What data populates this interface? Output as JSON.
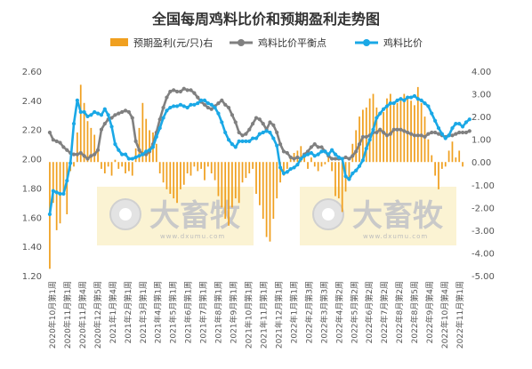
{
  "chart_data": {
    "type": "bar+line",
    "title": "全国每周鸡料比价和预期盈利走势图",
    "legend_placement": "top",
    "grid": false,
    "colors": {
      "profit": "#f0a020",
      "breakeven": "#808080",
      "ratio": "#1aa8e6",
      "watermark_box": "#fbf3d3"
    },
    "y_left": {
      "min": 1.2,
      "max": 2.6,
      "step": 0.2,
      "ticks": [
        "1.20",
        "1.40",
        "1.60",
        "1.80",
        "2.00",
        "2.20",
        "2.40",
        "2.60"
      ]
    },
    "y_right": {
      "min": -5,
      "max": 4,
      "step": 1,
      "ticks": [
        "-5.00",
        "-4.00",
        "-3.00",
        "-2.00",
        "-1.00",
        "0.00",
        "1.00",
        "2.00",
        "3.00",
        "4.00"
      ]
    },
    "x_tick_labels": [
      "2020年10月第1周",
      "2020年11月第1周",
      "2020年11月第4周",
      "2020年12月第5周",
      "2021年1月第4周",
      "2021年2月第1周",
      "2021年3月第1周",
      "2021年4月第1周",
      "2021年5月第1周",
      "2021年6月第1周",
      "2021年7月第1周",
      "2021年8月第1周",
      "2021年9月第1周",
      "2021年10月第1周",
      "2021年11月第1周",
      "2021年12月第1周",
      "2022年1月第1周",
      "2022年2月第3周",
      "2022年3月第3周",
      "2022年4月第2周",
      "2022年5月第2周",
      "2022年6月第2周",
      "2022年7月第2周",
      "2022年8月第2周",
      "2022年8月第5周",
      "2022年9月第4周",
      "2022年10月第4周",
      "2022年11月第1周"
    ],
    "watermarks": [
      {
        "label": "大畜牧",
        "sub": "www.dxumu.com"
      },
      {
        "label": "大畜牧",
        "sub": "www.dxumu.com"
      }
    ],
    "series": [
      {
        "name": "预期盈利(元/只)右",
        "axis": "right",
        "type": "bar",
        "values": [
          -4.7,
          -1.8,
          -3.0,
          -2.7,
          -1.4,
          -2.3,
          -0.4,
          -0.2,
          1.3,
          3.4,
          2.6,
          1.8,
          1.5,
          1.2,
          0.5,
          -0.3,
          -0.5,
          -0.2,
          -0.6,
          0.1,
          -0.3,
          -0.2,
          -0.5,
          -0.4,
          -0.6,
          0.6,
          1.5,
          2.6,
          1.9,
          1.4,
          1.3,
          0.8,
          -0.5,
          -0.9,
          -1.2,
          -1.4,
          -1.6,
          -1.8,
          -1.2,
          -1.0,
          -0.5,
          -0.6,
          -0.2,
          -0.4,
          -0.3,
          -0.8,
          -0.2,
          -0.5,
          -0.8,
          -1.5,
          -2.0,
          -2.5,
          -2.8,
          -2.0,
          -1.6,
          -1.8,
          -0.9,
          -0.7,
          -0.5,
          -0.3,
          -1.4,
          -1.9,
          -2.5,
          -3.3,
          -3.5,
          -2.5,
          -1.6,
          -0.9,
          -0.6,
          -0.3,
          0.2,
          0.4,
          0.5,
          0.7,
          0.3,
          -0.3,
          0.2,
          -0.2,
          -0.4,
          -0.2,
          -0.1,
          0.3,
          -0.4,
          -1.5,
          -1.6,
          -2.2,
          -1.3,
          -0.8,
          0.8,
          1.4,
          2.0,
          2.3,
          2.4,
          2.8,
          3.0,
          2.4,
          1.5,
          2.2,
          2.8,
          3.0,
          2.5,
          2.6,
          2.8,
          3.0,
          2.9,
          2.7,
          2.5,
          3.3,
          2.6,
          2.0,
          1.0,
          0.3,
          -0.6,
          -1.2,
          -0.3,
          -0.2,
          0.5,
          0.9,
          0.2,
          0.5,
          -0.2
        ]
      },
      {
        "name": "鸡料比价平衡点",
        "axis": "left",
        "type": "line",
        "values": [
          2.18,
          2.13,
          2.12,
          2.11,
          2.08,
          2.06,
          2.04,
          2.03,
          2.03,
          2.04,
          2.02,
          2.0,
          2.02,
          2.03,
          2.06,
          2.2,
          2.24,
          2.27,
          2.28,
          2.3,
          2.31,
          2.32,
          2.33,
          2.32,
          2.28,
          2.12,
          2.06,
          2.03,
          2.03,
          2.05,
          2.1,
          2.18,
          2.27,
          2.35,
          2.42,
          2.46,
          2.47,
          2.46,
          2.46,
          2.48,
          2.47,
          2.47,
          2.45,
          2.42,
          2.39,
          2.37,
          2.35,
          2.34,
          2.36,
          2.38,
          2.4,
          2.37,
          2.35,
          2.3,
          2.25,
          2.18,
          2.16,
          2.17,
          2.2,
          2.24,
          2.28,
          2.27,
          2.24,
          2.2,
          2.25,
          2.23,
          2.18,
          2.1,
          2.05,
          2.04,
          2.01,
          2.0,
          2.01,
          2.0,
          2.03,
          2.05,
          2.08,
          2.1,
          2.08,
          2.08,
          2.05,
          2.02,
          2.0,
          2.0,
          2.0,
          2.0,
          2.01,
          2.0,
          2.02,
          2.05,
          2.1,
          2.15,
          2.15,
          2.16,
          2.18,
          2.18,
          2.2,
          2.18,
          2.16,
          2.17,
          2.2,
          2.2,
          2.2,
          2.19,
          2.18,
          2.17,
          2.16,
          2.16,
          2.16,
          2.15,
          2.17,
          2.18,
          2.18,
          2.17,
          2.16,
          2.15,
          2.16,
          2.16,
          2.17,
          2.18,
          2.18,
          2.18,
          2.19
        ]
      },
      {
        "name": "鸡料比价",
        "axis": "left",
        "type": "line",
        "values": [
          1.62,
          1.78,
          1.77,
          1.76,
          1.76,
          1.85,
          1.97,
          2.24,
          2.4,
          2.32,
          2.32,
          2.29,
          2.3,
          2.32,
          2.31,
          2.3,
          2.34,
          2.3,
          2.22,
          2.1,
          2.06,
          2.03,
          2.03,
          2.0,
          2.0,
          2.01,
          2.02,
          2.03,
          2.05,
          2.06,
          2.08,
          2.15,
          2.21,
          2.28,
          2.33,
          2.35,
          2.36,
          2.36,
          2.37,
          2.36,
          2.35,
          2.37,
          2.37,
          2.38,
          2.4,
          2.4,
          2.38,
          2.37,
          2.35,
          2.31,
          2.25,
          2.18,
          2.13,
          2.1,
          2.08,
          2.12,
          2.12,
          2.12,
          2.12,
          2.14,
          2.14,
          2.17,
          2.18,
          2.19,
          2.18,
          2.14,
          2.09,
          1.94,
          1.9,
          1.91,
          1.93,
          1.94,
          1.96,
          2.0,
          2.02,
          2.03,
          2.04,
          2.02,
          2.03,
          2.05,
          2.05,
          2.03,
          2.06,
          2.03,
          2.01,
          2.0,
          1.88,
          1.86,
          1.9,
          1.92,
          1.95,
          1.99,
          2.07,
          2.13,
          2.2,
          2.28,
          2.31,
          2.34,
          2.36,
          2.38,
          2.38,
          2.4,
          2.41,
          2.4,
          2.42,
          2.42,
          2.43,
          2.41,
          2.4,
          2.38,
          2.36,
          2.31,
          2.26,
          2.21,
          2.17,
          2.14,
          2.16,
          2.21,
          2.24,
          2.24,
          2.22,
          2.25,
          2.27
        ]
      }
    ]
  }
}
